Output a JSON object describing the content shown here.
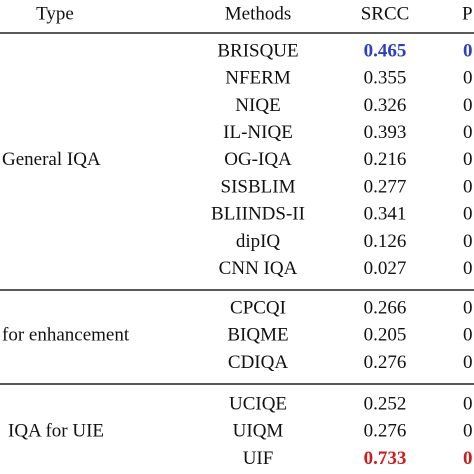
{
  "table": {
    "header": [
      "Type",
      "Methods",
      "SRCC",
      "P"
    ],
    "groups": [
      {
        "type": "General IQA",
        "rows": [
          {
            "method": "BRISQUE",
            "srcc": "0.465",
            "col4": "0",
            "color": "#2b3fc4"
          },
          {
            "method": "NFERM",
            "srcc": "0.355",
            "col4": "0"
          },
          {
            "method": "NIQE",
            "srcc": "0.326",
            "col4": "0"
          },
          {
            "method": "IL-NIQE",
            "srcc": "0.393",
            "col4": "0"
          },
          {
            "method": "OG-IQA",
            "srcc": "0.216",
            "col4": "0"
          },
          {
            "method": "SISBLIM",
            "srcc": "0.277",
            "col4": "0"
          },
          {
            "method": "BLIINDS-II",
            "srcc": "0.341",
            "col4": "0"
          },
          {
            "method": "dipIQ",
            "srcc": "0.126",
            "col4": "0"
          },
          {
            "method": "CNN IQA",
            "srcc": "0.027",
            "col4": "0"
          }
        ]
      },
      {
        "type": "for enhancement",
        "rows": [
          {
            "method": "CPCQI",
            "srcc": "0.266",
            "col4": "0"
          },
          {
            "method": "BIQME",
            "srcc": "0.205",
            "col4": "0"
          },
          {
            "method": "CDIQA",
            "srcc": "0.276",
            "col4": "0"
          }
        ]
      },
      {
        "type": "IQA for UIE",
        "rows": [
          {
            "method": "UCIQE",
            "srcc": "0.252",
            "col4": "0"
          },
          {
            "method": "UIQM",
            "srcc": "0.276",
            "col4": "0"
          },
          {
            "method": "UIF",
            "srcc": "0.733",
            "col4": "0",
            "color": "#d11a1a"
          }
        ]
      }
    ]
  }
}
